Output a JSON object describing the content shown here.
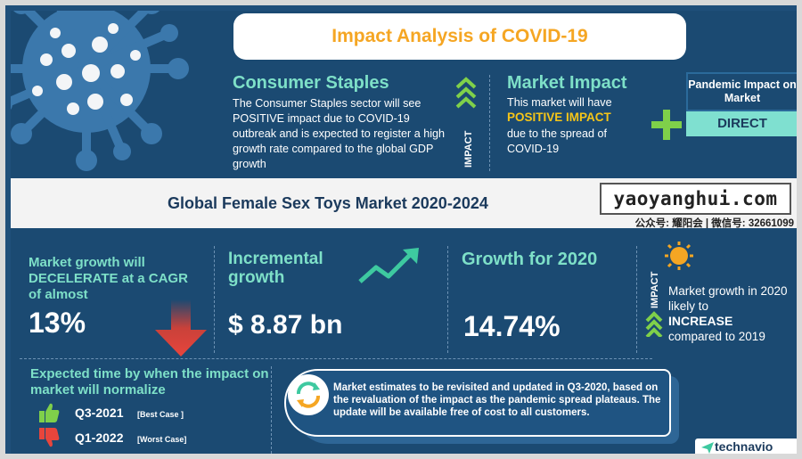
{
  "header": {
    "title": "Impact Analysis of COVID-19"
  },
  "consumer_staples": {
    "title": "Consumer Staples",
    "text": "The Consumer Staples sector will see POSITIVE impact due to COVID-19 outbreak and is expected to register a high growth rate compared to the global GDP growth"
  },
  "impact_label": "IMPACT",
  "market_impact": {
    "title": "Market Impact",
    "line1": "This market will have",
    "highlight": "POSITIVE IMPACT",
    "line3": "due to the spread of COVID-19"
  },
  "pandemic_impact": {
    "label": "Pandemic Impact on Market",
    "value": "DIRECT"
  },
  "band": {
    "title": "Global Female Sex Toys Market 2020-2024",
    "watermark": "yaoyanghui.com",
    "watermark_sub": "公众号: 耀阳会 | 微信号: 32661099"
  },
  "market_growth": {
    "text": "Market growth will DECELERATE at a CAGR of almost",
    "value": "13%"
  },
  "incremental_growth": {
    "title": "Incremental growth",
    "value": "$ 8.87 bn"
  },
  "growth_2020": {
    "title": "Growth for 2020",
    "value": "14.74%"
  },
  "impact_2": {
    "label": "IMPACT",
    "line1": "Market growth in 2020 likely to",
    "highlight": "INCREASE",
    "line3": "compared to 2019"
  },
  "expected_time": {
    "title": "Expected time by when the impact on market will normalize",
    "best": {
      "value": "Q3-2021",
      "label": "[Best Case ]"
    },
    "worst": {
      "value": "Q1-2022",
      "label": "[Worst Case]"
    }
  },
  "note": "Market estimates to be revisited and updated in Q3-2020, based on the revaluation of the impact as the pandemic spread plateaus. The update will be available free of cost to all customers.",
  "logo": "technavio",
  "colors": {
    "navy": "#1b4a72",
    "teal": "#7ee0c8",
    "orange": "#f5a623",
    "yellow": "#f5c518",
    "green": "#7fd04a",
    "red": "#e8453c"
  }
}
